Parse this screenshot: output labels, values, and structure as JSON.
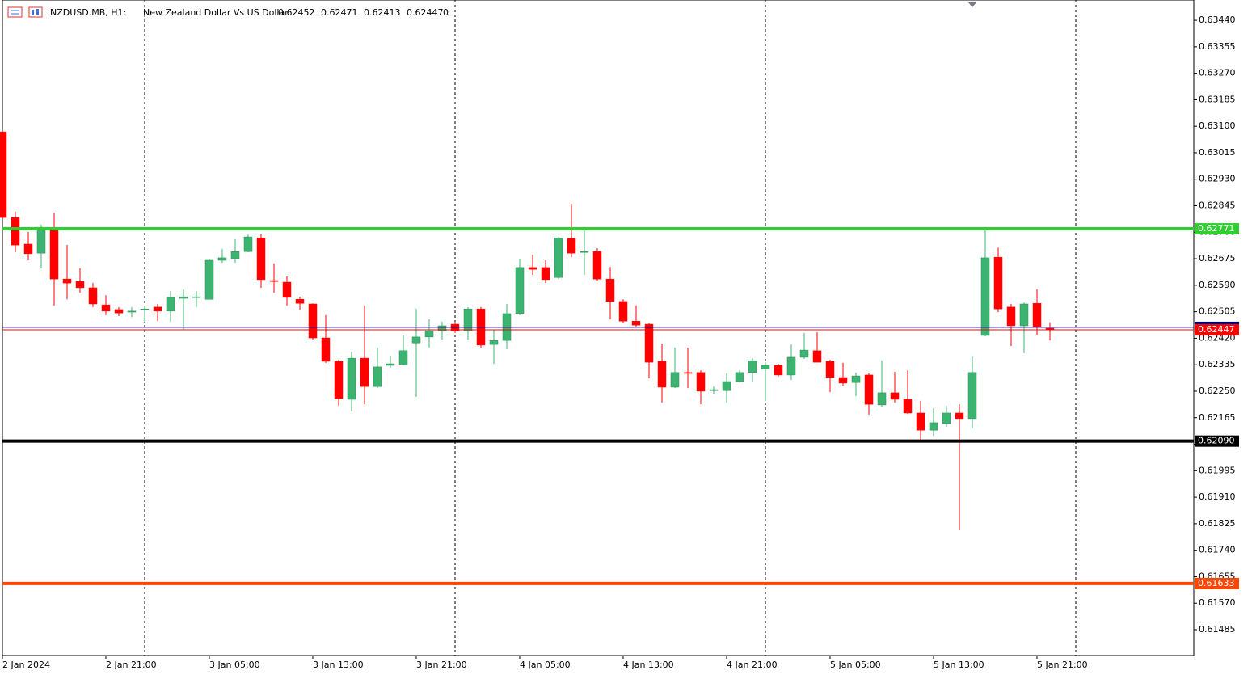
{
  "chart_data": {
    "type": "candlestick",
    "title": "NZDUSD.MB, H1:",
    "subtitle": "New Zealand Dollar Vs US Dollar",
    "header_volume": 0,
    "categories": [
      "2 Jan 2024",
      null,
      null,
      null,
      null,
      null,
      null,
      null,
      "2 Jan 21:00",
      null,
      null,
      null,
      null,
      null,
      null,
      null,
      "3 Jan 05:00",
      null,
      null,
      null,
      null,
      null,
      null,
      null,
      "3 Jan 13:00",
      null,
      null,
      null,
      null,
      null,
      null,
      null,
      "3 Jan 21:00",
      null,
      null,
      null,
      null,
      null,
      null,
      null,
      "4 Jan 05:00",
      null,
      null,
      null,
      null,
      null,
      null,
      null,
      "4 Jan 13:00",
      null,
      null,
      null,
      null,
      null,
      null,
      null,
      "4 Jan 21:00",
      null,
      null,
      null,
      null,
      null,
      null,
      null,
      "5 Jan 05:00",
      null,
      null,
      null,
      null,
      null,
      null,
      null,
      "5 Jan 13:00",
      null,
      null,
      null,
      null,
      null,
      null,
      null,
      "5 Jan 21:00",
      null
    ],
    "open": [
      0.63082,
      0.62807,
      0.62722,
      0.62693,
      0.62774,
      0.6261,
      0.62602,
      0.62582,
      0.62527,
      0.62512,
      0.62504,
      0.62512,
      0.6252,
      0.62507,
      0.62548,
      0.62551,
      0.62545,
      0.6267,
      0.62675,
      0.62698,
      0.62742,
      0.62605,
      0.626,
      0.62545,
      0.6253,
      0.62421,
      0.62346,
      0.62224,
      0.62356,
      0.62265,
      0.62333,
      0.62335,
      0.62405,
      0.62424,
      0.62444,
      0.62465,
      0.62444,
      0.62514,
      0.624,
      0.62413,
      0.62499,
      0.62647,
      0.62647,
      0.62615,
      0.6274,
      0.62696,
      0.62698,
      0.6261,
      0.62538,
      0.62475,
      0.62465,
      0.62346,
      0.62263,
      0.6231,
      0.6231,
      0.62252,
      0.62252,
      0.62281,
      0.6231,
      0.62322,
      0.62333,
      0.62302,
      0.62359,
      0.6238,
      0.62346,
      0.62294,
      0.62278,
      0.62302,
      0.62206,
      0.62245,
      0.62224,
      0.6218,
      0.62125,
      0.62146,
      0.6218,
      0.62162,
      0.62429,
      0.6268,
      0.6252,
      0.6246,
      0.62532,
      0.62452
    ],
    "high": [
      0.63082,
      0.62826,
      0.62761,
      0.62784,
      0.62823,
      0.62719,
      0.62644,
      0.62597,
      0.62558,
      0.6252,
      0.6252,
      0.62525,
      0.6253,
      0.62571,
      0.62577,
      0.62571,
      0.62675,
      0.62706,
      0.62737,
      0.62753,
      0.62753,
      0.6266,
      0.62618,
      0.62553,
      0.62532,
      0.62494,
      0.62351,
      0.62377,
      0.62525,
      0.6239,
      0.62364,
      0.62429,
      0.62514,
      0.62481,
      0.62473,
      0.62473,
      0.6252,
      0.6252,
      0.62447,
      0.6253,
      0.62675,
      0.62688,
      0.6267,
      0.62745,
      0.62851,
      0.62766,
      0.62709,
      0.62649,
      0.62545,
      0.62525,
      0.62468,
      0.62403,
      0.6239,
      0.6239,
      0.62317,
      0.62265,
      0.62307,
      0.62317,
      0.62356,
      0.62343,
      0.62338,
      0.624,
      0.62437,
      0.62439,
      0.62351,
      0.62341,
      0.6231,
      0.62307,
      0.62348,
      0.62312,
      0.62317,
      0.62219,
      0.62195,
      0.62203,
      0.62208,
      0.62361,
      0.62768,
      0.62711,
      0.6253,
      0.62535,
      0.62577,
      0.62471
    ],
    "low": [
      0.62807,
      0.62696,
      0.6267,
      0.62644,
      0.62525,
      0.62545,
      0.62566,
      0.6252,
      0.62494,
      0.62491,
      0.62488,
      0.62473,
      0.62475,
      0.62473,
      0.62447,
      0.6252,
      0.62545,
      0.62662,
      0.62662,
      0.62696,
      0.62582,
      0.62566,
      0.62525,
      0.62512,
      0.62416,
      0.62341,
      0.62203,
      0.62185,
      0.62208,
      0.6226,
      0.62325,
      0.62333,
      0.62232,
      0.6239,
      0.62416,
      0.62437,
      0.62416,
      0.6239,
      0.62338,
      0.62385,
      0.62494,
      0.62623,
      0.62597,
      0.6261,
      0.6268,
      0.62623,
      0.62605,
      0.62481,
      0.62468,
      0.62455,
      0.62291,
      0.62214,
      0.6226,
      0.6226,
      0.62208,
      0.62242,
      0.62214,
      0.62278,
      0.62281,
      0.62219,
      0.62297,
      0.62286,
      0.62354,
      0.62343,
      0.62247,
      0.62268,
      0.62234,
      0.62175,
      0.62201,
      0.62214,
      0.62177,
      0.62092,
      0.62107,
      0.62136,
      0.61804,
      0.62131,
      0.62426,
      0.62504,
      0.62395,
      0.62372,
      0.62431,
      0.62413
    ],
    "close": [
      0.62807,
      0.62719,
      0.62691,
      0.62776,
      0.6261,
      0.62597,
      0.62582,
      0.6253,
      0.62507,
      0.62501,
      0.62507,
      0.62514,
      0.62507,
      0.62551,
      0.62553,
      0.62553,
      0.6267,
      0.62678,
      0.62698,
      0.62745,
      0.62608,
      0.62602,
      0.62551,
      0.62532,
      0.62421,
      0.62346,
      0.62226,
      0.62356,
      0.62265,
      0.62328,
      0.62338,
      0.6238,
      0.62424,
      0.62444,
      0.6246,
      0.62444,
      0.62514,
      0.62398,
      0.62413,
      0.62499,
      0.62647,
      0.62641,
      0.62608,
      0.62742,
      0.62693,
      0.62698,
      0.6261,
      0.62538,
      0.62475,
      0.62462,
      0.62343,
      0.62263,
      0.6231,
      0.62307,
      0.6225,
      0.62255,
      0.62281,
      0.6231,
      0.62348,
      0.62333,
      0.62302,
      0.62359,
      0.62382,
      0.62343,
      0.62294,
      0.62276,
      0.62299,
      0.62208,
      0.62245,
      0.62224,
      0.6218,
      0.62125,
      0.62149,
      0.6218,
      0.62162,
      0.6231,
      0.62678,
      0.62514,
      0.6246,
      0.6253,
      0.62457,
      0.62447
    ],
    "up_color": "#3cb371",
    "down_color": "#ff0000",
    "ylim": [
      0.61402,
      0.63505
    ],
    "yticks": [
      {
        "value": 0.6344,
        "label": "0.63440"
      },
      {
        "value": 0.63355,
        "label": "0.63355"
      },
      {
        "value": 0.6327,
        "label": "0.63270"
      },
      {
        "value": 0.63185,
        "label": "0.63185"
      },
      {
        "value": 0.631,
        "label": "0.63100"
      },
      {
        "value": 0.63015,
        "label": "0.63015"
      },
      {
        "value": 0.6293,
        "label": "0.62930"
      },
      {
        "value": 0.62845,
        "label": "0.62845"
      },
      {
        "value": 0.6276,
        "label": "0.62760"
      },
      {
        "value": 0.62675,
        "label": "0.62675"
      },
      {
        "value": 0.6259,
        "label": "0.62590"
      },
      {
        "value": 0.62505,
        "label": "0.62505"
      },
      {
        "value": 0.6242,
        "label": "0.62420"
      },
      {
        "value": 0.62335,
        "label": "0.62335"
      },
      {
        "value": 0.6225,
        "label": "0.62250"
      },
      {
        "value": 0.62165,
        "label": "0.62165"
      },
      {
        "value": 0.6208,
        "label": "0.62080"
      },
      {
        "value": 0.61995,
        "label": "0.61995"
      },
      {
        "value": 0.6191,
        "label": "0.61910"
      },
      {
        "value": 0.61825,
        "label": "0.61825"
      },
      {
        "value": 0.6174,
        "label": "0.61740"
      },
      {
        "value": 0.61655,
        "label": "0.61655"
      },
      {
        "value": 0.6157,
        "label": "0.61570"
      },
      {
        "value": 0.61485,
        "label": "0.61485"
      }
    ],
    "levels": [
      {
        "value": 0.62455,
        "color": "#000080",
        "width": 1
      },
      {
        "value": 0.62447,
        "label": "0.62447",
        "color": "#ff0000",
        "width": 1
      },
      {
        "value": 0.62771,
        "label": "0.62771",
        "color": "#32cd32",
        "width": 4
      },
      {
        "value": 0.6209,
        "label": "0.62090",
        "color": "#000000",
        "width": 4
      },
      {
        "value": 0.61633,
        "label": "0.61633",
        "color": "#ff4500",
        "width": 4
      }
    ]
  }
}
